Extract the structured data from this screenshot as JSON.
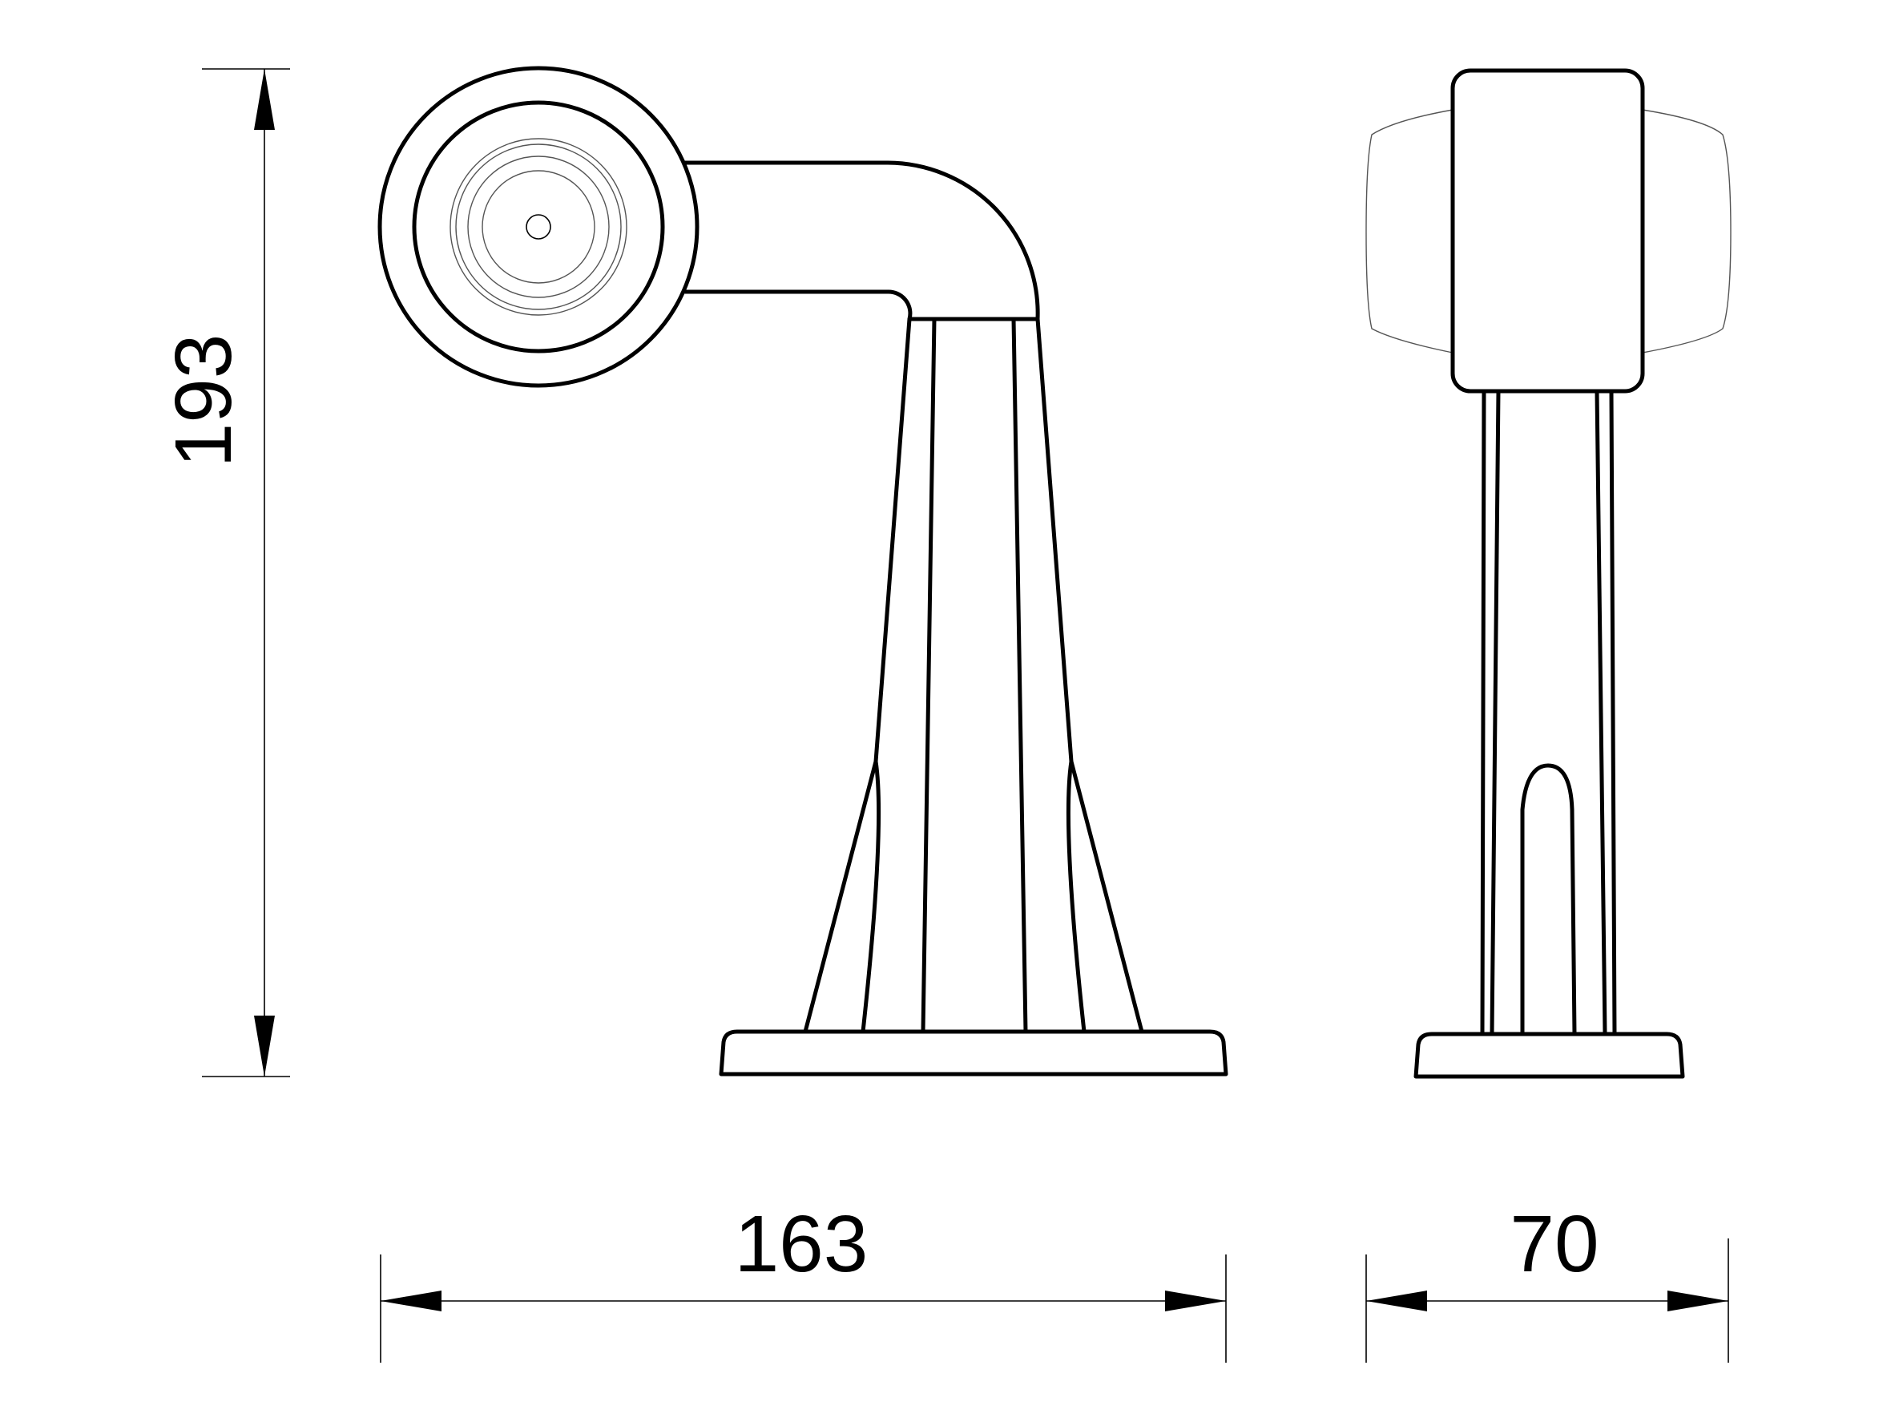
{
  "dimensions": {
    "height_label": "193",
    "width_label": "163",
    "depth_label": "70"
  }
}
